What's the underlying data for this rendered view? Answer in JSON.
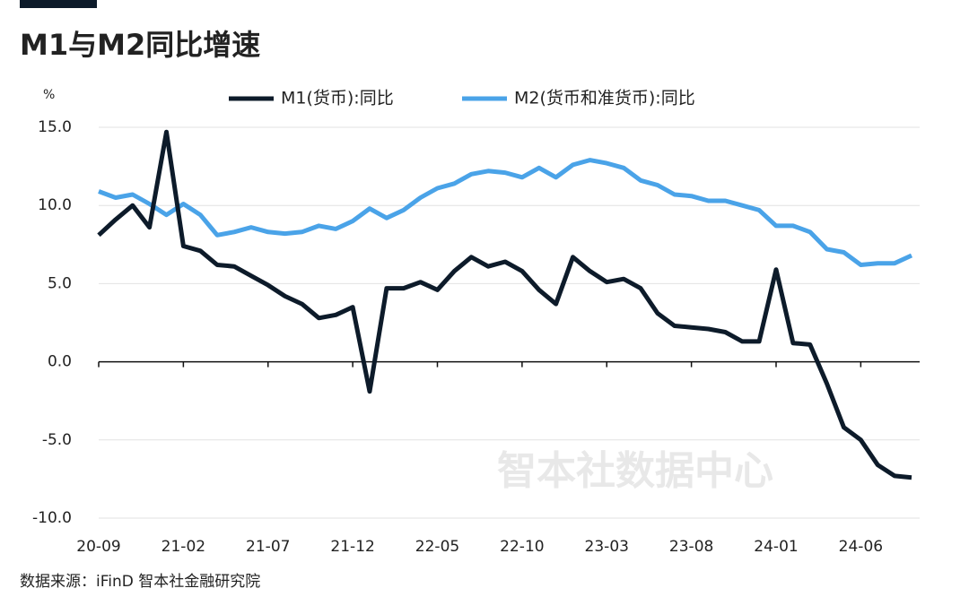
{
  "chart_data": {
    "type": "line",
    "title": "M1与M2同比增速",
    "y_unit": "%",
    "source": "数据来源：iFinD 智本社金融研究院",
    "watermark": "智本社数据中心",
    "categories": [
      "20-09",
      null,
      null,
      null,
      null,
      "21-02",
      null,
      null,
      null,
      null,
      "21-07",
      null,
      null,
      null,
      null,
      "21-12",
      null,
      null,
      null,
      null,
      "22-05",
      null,
      null,
      null,
      null,
      "22-10",
      null,
      null,
      null,
      null,
      "23-03",
      null,
      null,
      null,
      null,
      "23-08",
      null,
      null,
      null,
      null,
      "24-01",
      null,
      null,
      null,
      null,
      "24-06",
      null,
      null,
      null
    ],
    "series": [
      {
        "name": "M1(货币):同比",
        "color": "#0d1b2a",
        "values": [
          8.1,
          9.1,
          10.0,
          8.6,
          14.7,
          7.4,
          7.1,
          6.2,
          6.1,
          5.5,
          4.9,
          4.2,
          3.7,
          2.8,
          3.0,
          3.5,
          -1.9,
          4.7,
          4.7,
          5.1,
          4.6,
          5.8,
          6.7,
          6.1,
          6.4,
          5.8,
          4.6,
          3.7,
          6.7,
          5.8,
          5.1,
          5.3,
          4.7,
          3.1,
          2.3,
          2.2,
          2.1,
          1.9,
          1.3,
          1.3,
          5.9,
          1.2,
          1.1,
          -1.4,
          -4.2,
          -5.0,
          -6.6,
          -7.3,
          -7.4
        ]
      },
      {
        "name": "M2(货币和准货币):同比",
        "color": "#4aa3e8",
        "values": [
          10.9,
          10.5,
          10.7,
          10.1,
          9.4,
          10.1,
          9.4,
          8.1,
          8.3,
          8.6,
          8.3,
          8.2,
          8.3,
          8.7,
          8.5,
          9.0,
          9.8,
          9.2,
          9.7,
          10.5,
          11.1,
          11.4,
          12.0,
          12.2,
          12.1,
          11.8,
          12.4,
          11.8,
          12.6,
          12.9,
          12.7,
          12.4,
          11.6,
          11.3,
          10.7,
          10.6,
          10.3,
          10.3,
          10.0,
          9.7,
          8.7,
          8.7,
          8.3,
          7.2,
          7.0,
          6.2,
          6.3,
          6.3,
          6.8
        ]
      }
    ],
    "ylim": [
      -10,
      15
    ],
    "yticks": [
      {
        "value": -10,
        "label": "-10.0"
      },
      {
        "value": -5,
        "label": "-5.0"
      },
      {
        "value": 0,
        "label": "0.0"
      },
      {
        "value": 5,
        "label": "5.0"
      },
      {
        "value": 10,
        "label": "10.0"
      },
      {
        "value": 15,
        "label": "15.0"
      }
    ],
    "grid": true
  }
}
